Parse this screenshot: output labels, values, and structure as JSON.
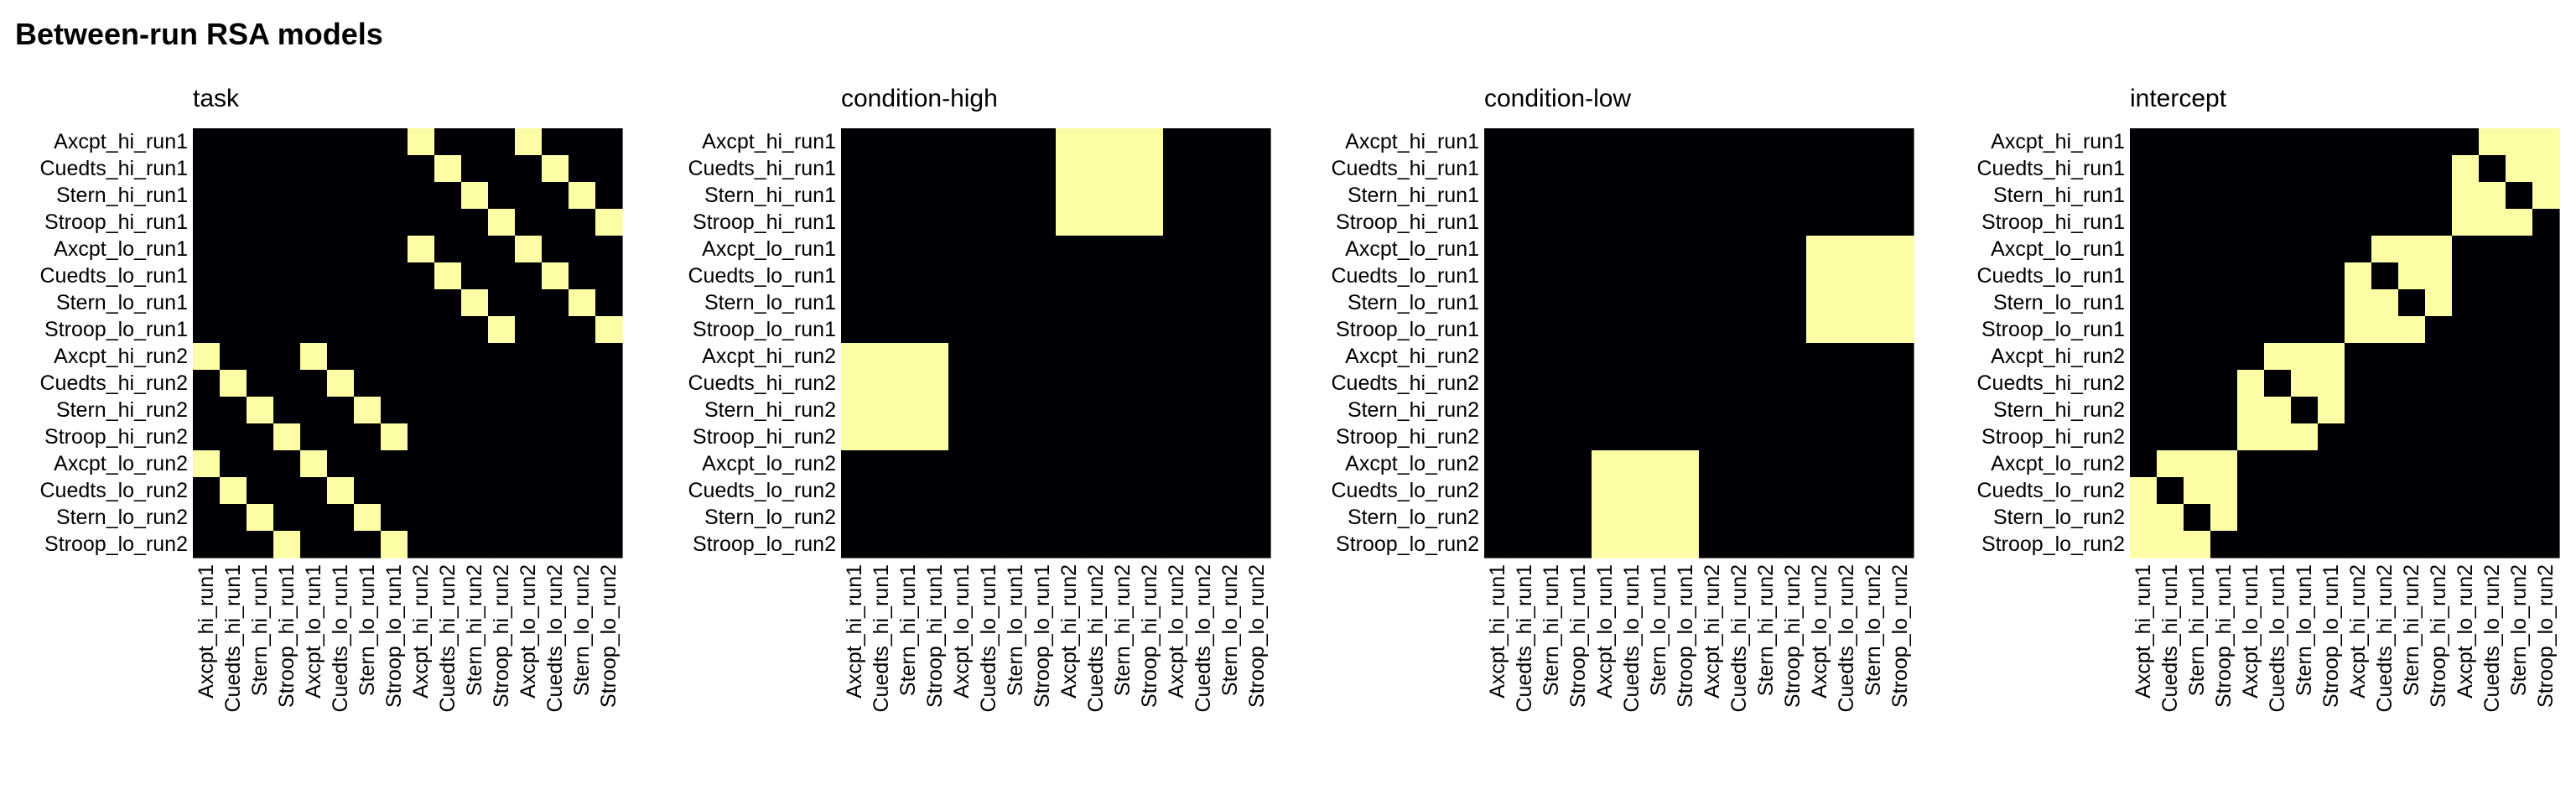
{
  "figure": {
    "title": "Between-run RSA models"
  },
  "colors": {
    "off": "#000004",
    "on": "#FCFDA4"
  },
  "chart_data": [
    {
      "type": "heatmap",
      "title": "task",
      "labels": [
        "Axcpt_hi_run1",
        "Cuedts_hi_run1",
        "Stern_hi_run1",
        "Stroop_hi_run1",
        "Axcpt_lo_run1",
        "Cuedts_lo_run1",
        "Stern_lo_run1",
        "Stroop_lo_run1",
        "Axcpt_hi_run2",
        "Cuedts_hi_run2",
        "Stern_hi_run2",
        "Stroop_hi_run2",
        "Axcpt_lo_run2",
        "Cuedts_lo_run2",
        "Stern_lo_run2",
        "Stroop_lo_run2"
      ],
      "matrix": [
        [
          0,
          0,
          0,
          0,
          0,
          0,
          0,
          0,
          1,
          0,
          0,
          0,
          1,
          0,
          0,
          0
        ],
        [
          0,
          0,
          0,
          0,
          0,
          0,
          0,
          0,
          0,
          1,
          0,
          0,
          0,
          1,
          0,
          0
        ],
        [
          0,
          0,
          0,
          0,
          0,
          0,
          0,
          0,
          0,
          0,
          1,
          0,
          0,
          0,
          1,
          0
        ],
        [
          0,
          0,
          0,
          0,
          0,
          0,
          0,
          0,
          0,
          0,
          0,
          1,
          0,
          0,
          0,
          1
        ],
        [
          0,
          0,
          0,
          0,
          0,
          0,
          0,
          0,
          1,
          0,
          0,
          0,
          1,
          0,
          0,
          0
        ],
        [
          0,
          0,
          0,
          0,
          0,
          0,
          0,
          0,
          0,
          1,
          0,
          0,
          0,
          1,
          0,
          0
        ],
        [
          0,
          0,
          0,
          0,
          0,
          0,
          0,
          0,
          0,
          0,
          1,
          0,
          0,
          0,
          1,
          0
        ],
        [
          0,
          0,
          0,
          0,
          0,
          0,
          0,
          0,
          0,
          0,
          0,
          1,
          0,
          0,
          0,
          1
        ],
        [
          1,
          0,
          0,
          0,
          1,
          0,
          0,
          0,
          0,
          0,
          0,
          0,
          0,
          0,
          0,
          0
        ],
        [
          0,
          1,
          0,
          0,
          0,
          1,
          0,
          0,
          0,
          0,
          0,
          0,
          0,
          0,
          0,
          0
        ],
        [
          0,
          0,
          1,
          0,
          0,
          0,
          1,
          0,
          0,
          0,
          0,
          0,
          0,
          0,
          0,
          0
        ],
        [
          0,
          0,
          0,
          1,
          0,
          0,
          0,
          1,
          0,
          0,
          0,
          0,
          0,
          0,
          0,
          0
        ],
        [
          1,
          0,
          0,
          0,
          1,
          0,
          0,
          0,
          0,
          0,
          0,
          0,
          0,
          0,
          0,
          0
        ],
        [
          0,
          1,
          0,
          0,
          0,
          1,
          0,
          0,
          0,
          0,
          0,
          0,
          0,
          0,
          0,
          0
        ],
        [
          0,
          0,
          1,
          0,
          0,
          0,
          1,
          0,
          0,
          0,
          0,
          0,
          0,
          0,
          0,
          0
        ],
        [
          0,
          0,
          0,
          1,
          0,
          0,
          0,
          1,
          0,
          0,
          0,
          0,
          0,
          0,
          0,
          0
        ]
      ]
    },
    {
      "type": "heatmap",
      "title": "condition-high",
      "labels": [
        "Axcpt_hi_run1",
        "Cuedts_hi_run1",
        "Stern_hi_run1",
        "Stroop_hi_run1",
        "Axcpt_lo_run1",
        "Cuedts_lo_run1",
        "Stern_lo_run1",
        "Stroop_lo_run1",
        "Axcpt_hi_run2",
        "Cuedts_hi_run2",
        "Stern_hi_run2",
        "Stroop_hi_run2",
        "Axcpt_lo_run2",
        "Cuedts_lo_run2",
        "Stern_lo_run2",
        "Stroop_lo_run2"
      ],
      "matrix": [
        [
          0,
          0,
          0,
          0,
          0,
          0,
          0,
          0,
          1,
          1,
          1,
          1,
          0,
          0,
          0,
          0
        ],
        [
          0,
          0,
          0,
          0,
          0,
          0,
          0,
          0,
          1,
          1,
          1,
          1,
          0,
          0,
          0,
          0
        ],
        [
          0,
          0,
          0,
          0,
          0,
          0,
          0,
          0,
          1,
          1,
          1,
          1,
          0,
          0,
          0,
          0
        ],
        [
          0,
          0,
          0,
          0,
          0,
          0,
          0,
          0,
          1,
          1,
          1,
          1,
          0,
          0,
          0,
          0
        ],
        [
          0,
          0,
          0,
          0,
          0,
          0,
          0,
          0,
          0,
          0,
          0,
          0,
          0,
          0,
          0,
          0
        ],
        [
          0,
          0,
          0,
          0,
          0,
          0,
          0,
          0,
          0,
          0,
          0,
          0,
          0,
          0,
          0,
          0
        ],
        [
          0,
          0,
          0,
          0,
          0,
          0,
          0,
          0,
          0,
          0,
          0,
          0,
          0,
          0,
          0,
          0
        ],
        [
          0,
          0,
          0,
          0,
          0,
          0,
          0,
          0,
          0,
          0,
          0,
          0,
          0,
          0,
          0,
          0
        ],
        [
          1,
          1,
          1,
          1,
          0,
          0,
          0,
          0,
          0,
          0,
          0,
          0,
          0,
          0,
          0,
          0
        ],
        [
          1,
          1,
          1,
          1,
          0,
          0,
          0,
          0,
          0,
          0,
          0,
          0,
          0,
          0,
          0,
          0
        ],
        [
          1,
          1,
          1,
          1,
          0,
          0,
          0,
          0,
          0,
          0,
          0,
          0,
          0,
          0,
          0,
          0
        ],
        [
          1,
          1,
          1,
          1,
          0,
          0,
          0,
          0,
          0,
          0,
          0,
          0,
          0,
          0,
          0,
          0
        ],
        [
          0,
          0,
          0,
          0,
          0,
          0,
          0,
          0,
          0,
          0,
          0,
          0,
          0,
          0,
          0,
          0
        ],
        [
          0,
          0,
          0,
          0,
          0,
          0,
          0,
          0,
          0,
          0,
          0,
          0,
          0,
          0,
          0,
          0
        ],
        [
          0,
          0,
          0,
          0,
          0,
          0,
          0,
          0,
          0,
          0,
          0,
          0,
          0,
          0,
          0,
          0
        ],
        [
          0,
          0,
          0,
          0,
          0,
          0,
          0,
          0,
          0,
          0,
          0,
          0,
          0,
          0,
          0,
          0
        ]
      ]
    },
    {
      "type": "heatmap",
      "title": "condition-low",
      "labels": [
        "Axcpt_hi_run1",
        "Cuedts_hi_run1",
        "Stern_hi_run1",
        "Stroop_hi_run1",
        "Axcpt_lo_run1",
        "Cuedts_lo_run1",
        "Stern_lo_run1",
        "Stroop_lo_run1",
        "Axcpt_hi_run2",
        "Cuedts_hi_run2",
        "Stern_hi_run2",
        "Stroop_hi_run2",
        "Axcpt_lo_run2",
        "Cuedts_lo_run2",
        "Stern_lo_run2",
        "Stroop_lo_run2"
      ],
      "matrix": [
        [
          0,
          0,
          0,
          0,
          0,
          0,
          0,
          0,
          0,
          0,
          0,
          0,
          0,
          0,
          0,
          0
        ],
        [
          0,
          0,
          0,
          0,
          0,
          0,
          0,
          0,
          0,
          0,
          0,
          0,
          0,
          0,
          0,
          0
        ],
        [
          0,
          0,
          0,
          0,
          0,
          0,
          0,
          0,
          0,
          0,
          0,
          0,
          0,
          0,
          0,
          0
        ],
        [
          0,
          0,
          0,
          0,
          0,
          0,
          0,
          0,
          0,
          0,
          0,
          0,
          0,
          0,
          0,
          0
        ],
        [
          0,
          0,
          0,
          0,
          0,
          0,
          0,
          0,
          0,
          0,
          0,
          0,
          1,
          1,
          1,
          1
        ],
        [
          0,
          0,
          0,
          0,
          0,
          0,
          0,
          0,
          0,
          0,
          0,
          0,
          1,
          1,
          1,
          1
        ],
        [
          0,
          0,
          0,
          0,
          0,
          0,
          0,
          0,
          0,
          0,
          0,
          0,
          1,
          1,
          1,
          1
        ],
        [
          0,
          0,
          0,
          0,
          0,
          0,
          0,
          0,
          0,
          0,
          0,
          0,
          1,
          1,
          1,
          1
        ],
        [
          0,
          0,
          0,
          0,
          0,
          0,
          0,
          0,
          0,
          0,
          0,
          0,
          0,
          0,
          0,
          0
        ],
        [
          0,
          0,
          0,
          0,
          0,
          0,
          0,
          0,
          0,
          0,
          0,
          0,
          0,
          0,
          0,
          0
        ],
        [
          0,
          0,
          0,
          0,
          0,
          0,
          0,
          0,
          0,
          0,
          0,
          0,
          0,
          0,
          0,
          0
        ],
        [
          0,
          0,
          0,
          0,
          0,
          0,
          0,
          0,
          0,
          0,
          0,
          0,
          0,
          0,
          0,
          0
        ],
        [
          0,
          0,
          0,
          0,
          1,
          1,
          1,
          1,
          0,
          0,
          0,
          0,
          0,
          0,
          0,
          0
        ],
        [
          0,
          0,
          0,
          0,
          1,
          1,
          1,
          1,
          0,
          0,
          0,
          0,
          0,
          0,
          0,
          0
        ],
        [
          0,
          0,
          0,
          0,
          1,
          1,
          1,
          1,
          0,
          0,
          0,
          0,
          0,
          0,
          0,
          0
        ],
        [
          0,
          0,
          0,
          0,
          1,
          1,
          1,
          1,
          0,
          0,
          0,
          0,
          0,
          0,
          0,
          0
        ]
      ]
    },
    {
      "type": "heatmap",
      "title": "intercept",
      "labels": [
        "Axcpt_hi_run1",
        "Cuedts_hi_run1",
        "Stern_hi_run1",
        "Stroop_hi_run1",
        "Axcpt_lo_run1",
        "Cuedts_lo_run1",
        "Stern_lo_run1",
        "Stroop_lo_run1",
        "Axcpt_hi_run2",
        "Cuedts_hi_run2",
        "Stern_hi_run2",
        "Stroop_hi_run2",
        "Axcpt_lo_run2",
        "Cuedts_lo_run2",
        "Stern_lo_run2",
        "Stroop_lo_run2"
      ],
      "matrix": [
        [
          0,
          0,
          0,
          0,
          0,
          0,
          0,
          0,
          0,
          0,
          0,
          0,
          0,
          1,
          1,
          1
        ],
        [
          0,
          0,
          0,
          0,
          0,
          0,
          0,
          0,
          0,
          0,
          0,
          0,
          1,
          0,
          1,
          1
        ],
        [
          0,
          0,
          0,
          0,
          0,
          0,
          0,
          0,
          0,
          0,
          0,
          0,
          1,
          1,
          0,
          1
        ],
        [
          0,
          0,
          0,
          0,
          0,
          0,
          0,
          0,
          0,
          0,
          0,
          0,
          1,
          1,
          1,
          0
        ],
        [
          0,
          0,
          0,
          0,
          0,
          0,
          0,
          0,
          0,
          1,
          1,
          1,
          0,
          0,
          0,
          0
        ],
        [
          0,
          0,
          0,
          0,
          0,
          0,
          0,
          0,
          1,
          0,
          1,
          1,
          0,
          0,
          0,
          0
        ],
        [
          0,
          0,
          0,
          0,
          0,
          0,
          0,
          0,
          1,
          1,
          0,
          1,
          0,
          0,
          0,
          0
        ],
        [
          0,
          0,
          0,
          0,
          0,
          0,
          0,
          0,
          1,
          1,
          1,
          0,
          0,
          0,
          0,
          0
        ],
        [
          0,
          0,
          0,
          0,
          0,
          1,
          1,
          1,
          0,
          0,
          0,
          0,
          0,
          0,
          0,
          0
        ],
        [
          0,
          0,
          0,
          0,
          1,
          0,
          1,
          1,
          0,
          0,
          0,
          0,
          0,
          0,
          0,
          0
        ],
        [
          0,
          0,
          0,
          0,
          1,
          1,
          0,
          1,
          0,
          0,
          0,
          0,
          0,
          0,
          0,
          0
        ],
        [
          0,
          0,
          0,
          0,
          1,
          1,
          1,
          0,
          0,
          0,
          0,
          0,
          0,
          0,
          0,
          0
        ],
        [
          0,
          1,
          1,
          1,
          0,
          0,
          0,
          0,
          0,
          0,
          0,
          0,
          0,
          0,
          0,
          0
        ],
        [
          1,
          0,
          1,
          1,
          0,
          0,
          0,
          0,
          0,
          0,
          0,
          0,
          0,
          0,
          0,
          0
        ],
        [
          1,
          1,
          0,
          1,
          0,
          0,
          0,
          0,
          0,
          0,
          0,
          0,
          0,
          0,
          0,
          0
        ],
        [
          1,
          1,
          1,
          0,
          0,
          0,
          0,
          0,
          0,
          0,
          0,
          0,
          0,
          0,
          0,
          0
        ]
      ]
    }
  ]
}
